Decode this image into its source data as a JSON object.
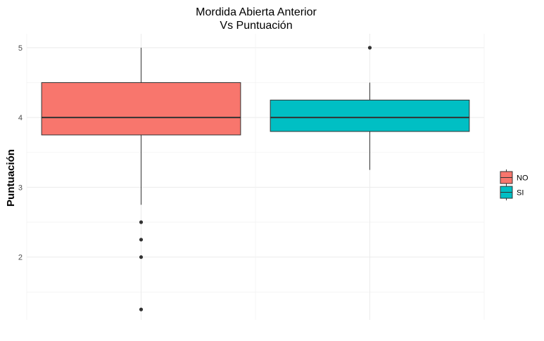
{
  "chart_data": {
    "type": "boxplot",
    "title_line1": "Mordida Abierta Anterior",
    "title_line2": "Vs Puntuación",
    "xlabel": "",
    "ylabel": "Puntuación",
    "ylim": [
      1.1,
      5.2
    ],
    "yticks": [
      2,
      3,
      4,
      5
    ],
    "grid": true,
    "legend_position": "right",
    "categories": [
      "NO",
      "SI"
    ],
    "series": [
      {
        "name": "NO",
        "color": "#F8766D",
        "min": 2.75,
        "q1": 3.75,
        "median": 4.0,
        "q3": 4.5,
        "max": 5.0,
        "outliers": [
          2.5,
          2.25,
          2.0,
          1.25
        ]
      },
      {
        "name": "SI",
        "color": "#00BFC4",
        "min": 3.25,
        "q1": 3.8,
        "median": 4.0,
        "q3": 4.25,
        "max": 4.5,
        "outliers": [
          5.0
        ]
      }
    ]
  }
}
